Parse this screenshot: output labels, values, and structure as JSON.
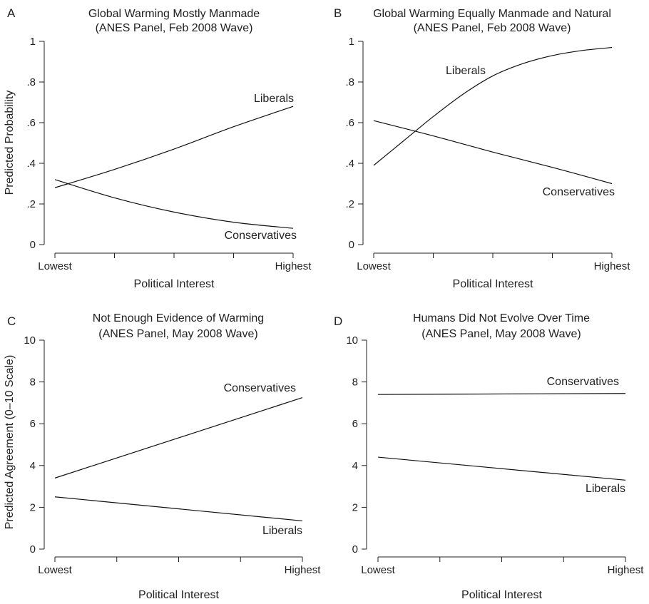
{
  "chart_data": [
    {
      "panel": "A",
      "type": "line",
      "title": [
        "Global Warming Mostly Manmade",
        "(ANES Panel, Feb 2008 Wave)"
      ],
      "xlabel": "Political Interest",
      "ylabel": "Predicted Probability",
      "x_ticks": [
        "Lowest",
        "",
        "",
        "",
        "Highest"
      ],
      "xlim": [
        0,
        4
      ],
      "ylim": [
        0,
        1
      ],
      "y_ticks": [
        0,
        0.2,
        0.4,
        0.6,
        0.8,
        1
      ],
      "y_tick_labels": [
        "0",
        ".2",
        ".4",
        ".6",
        ".8",
        "1"
      ],
      "series": [
        {
          "name": "Liberals",
          "x": [
            0,
            1,
            2,
            3,
            4
          ],
          "values": [
            0.28,
            0.37,
            0.47,
            0.58,
            0.68
          ]
        },
        {
          "name": "Conservatives",
          "x": [
            0,
            1,
            2,
            3,
            4
          ],
          "values": [
            0.32,
            0.23,
            0.16,
            0.11,
            0.08
          ]
        }
      ]
    },
    {
      "panel": "B",
      "type": "line",
      "title": [
        "Global Warming Equally Manmade and Natural",
        "(ANES Panel, Feb 2008 Wave)"
      ],
      "xlabel": "Political Interest",
      "ylabel": "",
      "x_ticks": [
        "Lowest",
        "",
        "",
        "",
        "Highest"
      ],
      "xlim": [
        0,
        4
      ],
      "ylim": [
        0,
        1
      ],
      "y_ticks": [
        0,
        0.2,
        0.4,
        0.6,
        0.8,
        1
      ],
      "y_tick_labels": [
        "0",
        ".2",
        ".4",
        ".6",
        ".8",
        "1"
      ],
      "series": [
        {
          "name": "Liberals",
          "x": [
            0,
            0.5,
            1,
            1.5,
            2,
            2.5,
            3,
            3.5,
            4
          ],
          "values": [
            0.39,
            0.51,
            0.63,
            0.74,
            0.83,
            0.89,
            0.93,
            0.955,
            0.97
          ]
        },
        {
          "name": "Conservatives",
          "x": [
            0,
            1,
            2,
            3,
            4
          ],
          "values": [
            0.61,
            0.535,
            0.455,
            0.38,
            0.3
          ]
        }
      ]
    },
    {
      "panel": "C",
      "type": "line",
      "title": [
        "Not Enough Evidence of Warming",
        "(ANES Panel, May 2008 Wave)"
      ],
      "xlabel": "Political Interest",
      "ylabel": "Predicted Agreement (0–10 Scale)",
      "x_ticks": [
        "Lowest",
        "",
        "",
        "",
        "Highest"
      ],
      "xlim": [
        0,
        4
      ],
      "ylim": [
        0,
        10
      ],
      "y_ticks": [
        0,
        2,
        4,
        6,
        8,
        10
      ],
      "y_tick_labels": [
        "0",
        "2",
        "4",
        "6",
        "8",
        "10"
      ],
      "series": [
        {
          "name": "Conservatives",
          "x": [
            0,
            4
          ],
          "values": [
            3.4,
            7.25
          ]
        },
        {
          "name": "Liberals",
          "x": [
            0,
            4
          ],
          "values": [
            2.5,
            1.35
          ]
        }
      ]
    },
    {
      "panel": "D",
      "type": "line",
      "title": [
        "Humans Did Not Evolve Over Time",
        "(ANES Panel, May 2008 Wave)"
      ],
      "xlabel": "Political Interest",
      "ylabel": "",
      "x_ticks": [
        "Lowest",
        "",
        "",
        "",
        "Highest"
      ],
      "xlim": [
        0,
        4
      ],
      "ylim": [
        0,
        10
      ],
      "y_ticks": [
        0,
        2,
        4,
        6,
        8,
        10
      ],
      "y_tick_labels": [
        "0",
        "2",
        "4",
        "6",
        "8",
        "10"
      ],
      "series": [
        {
          "name": "Conservatives",
          "x": [
            0,
            4
          ],
          "values": [
            7.4,
            7.45
          ]
        },
        {
          "name": "Liberals",
          "x": [
            0,
            4
          ],
          "values": [
            4.4,
            3.3
          ]
        }
      ]
    }
  ]
}
